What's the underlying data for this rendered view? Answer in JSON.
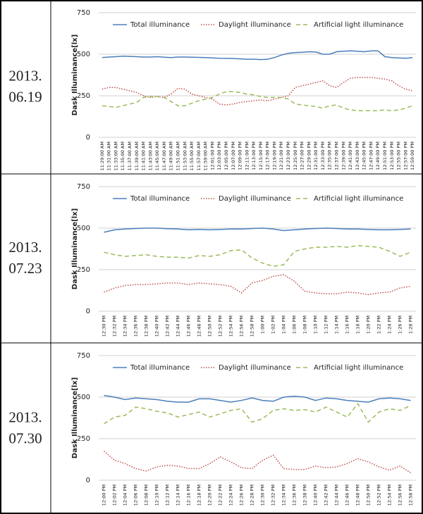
{
  "row_labels": [
    [
      "2013.",
      "06.19"
    ],
    [
      "2013.",
      "07.23"
    ],
    [
      "2013.",
      "07.30"
    ]
  ],
  "chart_data": [
    {
      "type": "line",
      "y_label": "Dask Illuminance[lx]",
      "ylim": [
        0,
        750
      ],
      "yticks": [
        0,
        250,
        500,
        750
      ],
      "grid": true,
      "categories": [
        "11:29:00 AM",
        "11:31:00 AM",
        "11:33:00 AM",
        "11:35:00 AM",
        "11:37:00 AM",
        "11:39:00 AM",
        "11:41:00 AM",
        "11:43:00 AM",
        "11:45:00 AM",
        "11:47:00 AM",
        "11:49:00 AM",
        "11:51:00 AM",
        "11:53:00 AM",
        "11:55:00 AM",
        "11:57:00 AM",
        "11:59:00 AM",
        "12:01:00 PM",
        "12:03:00 PM",
        "12:05:00 PM",
        "12:07:00 PM",
        "12:09:00 PM",
        "12:11:00 PM",
        "12:13:00 PM",
        "12:15:00 PM",
        "12:17:00 PM",
        "12:19:00 PM",
        "12:21:00 PM",
        "12:23:00 PM",
        "12:25:00 PM",
        "12:27:00 PM",
        "12:29:00 PM",
        "12:31:00 PM",
        "12:33:00 PM",
        "12:35:00 PM",
        "12:37:00 PM",
        "12:39:00 PM",
        "12:41:00 PM",
        "12:43:00 PM",
        "12:45:00 PM",
        "12:47:00 PM",
        "12:49:00 PM",
        "12:51:00 PM",
        "12:53:00 PM",
        "12:55:00 PM",
        "12:57:00 PM",
        "12:59:00 PM"
      ],
      "series": [
        {
          "name": "Total illuminance",
          "color": "#4a7ebb",
          "dash": "solid",
          "values": [
            480,
            483,
            485,
            488,
            487,
            485,
            483,
            483,
            485,
            482,
            480,
            483,
            483,
            482,
            481,
            480,
            478,
            476,
            475,
            474,
            472,
            470,
            470,
            468,
            470,
            480,
            495,
            505,
            510,
            512,
            515,
            513,
            500,
            500,
            515,
            518,
            520,
            518,
            515,
            520,
            520,
            485,
            480,
            478,
            476,
            480
          ]
        },
        {
          "name": "Daylight illuminance",
          "color": "#c0504d",
          "dash": "dotted",
          "values": [
            290,
            300,
            300,
            290,
            280,
            270,
            250,
            240,
            245,
            240,
            260,
            295,
            290,
            260,
            250,
            240,
            230,
            200,
            195,
            200,
            210,
            215,
            220,
            225,
            220,
            230,
            240,
            250,
            300,
            310,
            320,
            330,
            340,
            310,
            300,
            330,
            355,
            360,
            360,
            360,
            355,
            350,
            340,
            310,
            290,
            280
          ]
        },
        {
          "name": "Artificial light illuminance",
          "color": "#9bbb59",
          "dash": "dashed",
          "values": [
            190,
            185,
            180,
            190,
            200,
            210,
            240,
            245,
            245,
            240,
            215,
            190,
            190,
            205,
            220,
            230,
            240,
            260,
            275,
            275,
            270,
            260,
            255,
            245,
            240,
            240,
            240,
            230,
            200,
            195,
            190,
            185,
            175,
            190,
            195,
            175,
            165,
            160,
            160,
            160,
            160,
            165,
            160,
            165,
            175,
            190
          ]
        }
      ]
    },
    {
      "type": "line",
      "y_label": "Dask Illuminance[lx]",
      "ylim": [
        0,
        750
      ],
      "yticks": [
        0,
        250,
        500,
        750
      ],
      "grid": true,
      "categories": [
        "12:30 PM",
        "12:32 PM",
        "12:34 PM",
        "12:36 PM",
        "12:38 PM",
        "12:40 PM",
        "12:42 PM",
        "12:44 PM",
        "12:46 PM",
        "12:48 PM",
        "12:50 PM",
        "12:52 PM",
        "12:54 PM",
        "12:56 PM",
        "12:58 PM",
        "1:00 PM",
        "1:02 PM",
        "1:04 PM",
        "1:06 PM",
        "1:08 PM",
        "1:10 PM",
        "1:12 PM",
        "1:14 PM",
        "1:16 PM",
        "1:18 PM",
        "1:20 PM",
        "1:22 PM",
        "1:24 PM",
        "1:26 PM",
        "1:28 PM"
      ],
      "series": [
        {
          "name": "Total illuminance",
          "color": "#4a7ebb",
          "dash": "solid",
          "values": [
            475,
            490,
            495,
            498,
            500,
            500,
            497,
            495,
            490,
            492,
            490,
            492,
            495,
            495,
            498,
            500,
            495,
            485,
            490,
            495,
            498,
            500,
            498,
            495,
            495,
            492,
            490,
            490,
            492,
            495
          ]
        },
        {
          "name": "Daylight illuminance",
          "color": "#c0504d",
          "dash": "dotted",
          "values": [
            115,
            140,
            155,
            160,
            160,
            165,
            170,
            170,
            160,
            170,
            165,
            160,
            150,
            110,
            170,
            185,
            210,
            220,
            180,
            120,
            110,
            105,
            105,
            115,
            110,
            100,
            110,
            115,
            140,
            150
          ]
        },
        {
          "name": "Artificial light illuminance",
          "color": "#9bbb59",
          "dash": "dashed",
          "values": [
            355,
            340,
            330,
            335,
            340,
            330,
            325,
            325,
            320,
            335,
            330,
            340,
            365,
            370,
            320,
            290,
            270,
            280,
            360,
            375,
            385,
            385,
            390,
            385,
            395,
            390,
            385,
            360,
            330,
            355
          ]
        }
      ]
    },
    {
      "type": "line",
      "y_label": "Dask Illuminance[lx]",
      "ylim": [
        0,
        750
      ],
      "yticks": [
        0,
        250,
        500,
        750
      ],
      "grid": true,
      "categories": [
        "12:00 PM",
        "12:02 PM",
        "12:04 PM",
        "12:06 PM",
        "12:08 PM",
        "12:10 PM",
        "12:12 PM",
        "12:14 PM",
        "12:16 PM",
        "12:18 PM",
        "12:20 PM",
        "12:22 PM",
        "12:24 PM",
        "12:26 PM",
        "12:28 PM",
        "12:30 PM",
        "12:32 PM",
        "12:34 PM",
        "12:36 PM",
        "12:38 PM",
        "12:40 PM",
        "12:42 PM",
        "12:44 PM",
        "12:46 PM",
        "12:48 PM",
        "12:50 PM",
        "12:52 PM",
        "12:54 PM",
        "12:56 PM",
        "12:58 PM"
      ],
      "series": [
        {
          "name": "Total illuminance",
          "color": "#4a7ebb",
          "dash": "solid",
          "values": [
            510,
            500,
            485,
            495,
            490,
            485,
            475,
            470,
            470,
            490,
            490,
            480,
            470,
            480,
            495,
            480,
            475,
            500,
            505,
            500,
            480,
            495,
            490,
            480,
            475,
            470,
            490,
            495,
            490,
            480
          ]
        },
        {
          "name": "Daylight illuminance",
          "color": "#c0504d",
          "dash": "dotted",
          "values": [
            175,
            120,
            100,
            70,
            55,
            80,
            90,
            85,
            70,
            70,
            100,
            140,
            110,
            75,
            70,
            120,
            150,
            70,
            65,
            65,
            85,
            75,
            80,
            100,
            130,
            110,
            80,
            60,
            85,
            45
          ]
        },
        {
          "name": "Artificial light illuminance",
          "color": "#9bbb59",
          "dash": "dashed",
          "values": [
            340,
            380,
            390,
            440,
            430,
            415,
            405,
            380,
            395,
            410,
            380,
            400,
            420,
            430,
            350,
            370,
            420,
            430,
            420,
            425,
            410,
            440,
            410,
            380,
            460,
            350,
            410,
            430,
            420,
            450
          ]
        }
      ]
    }
  ]
}
